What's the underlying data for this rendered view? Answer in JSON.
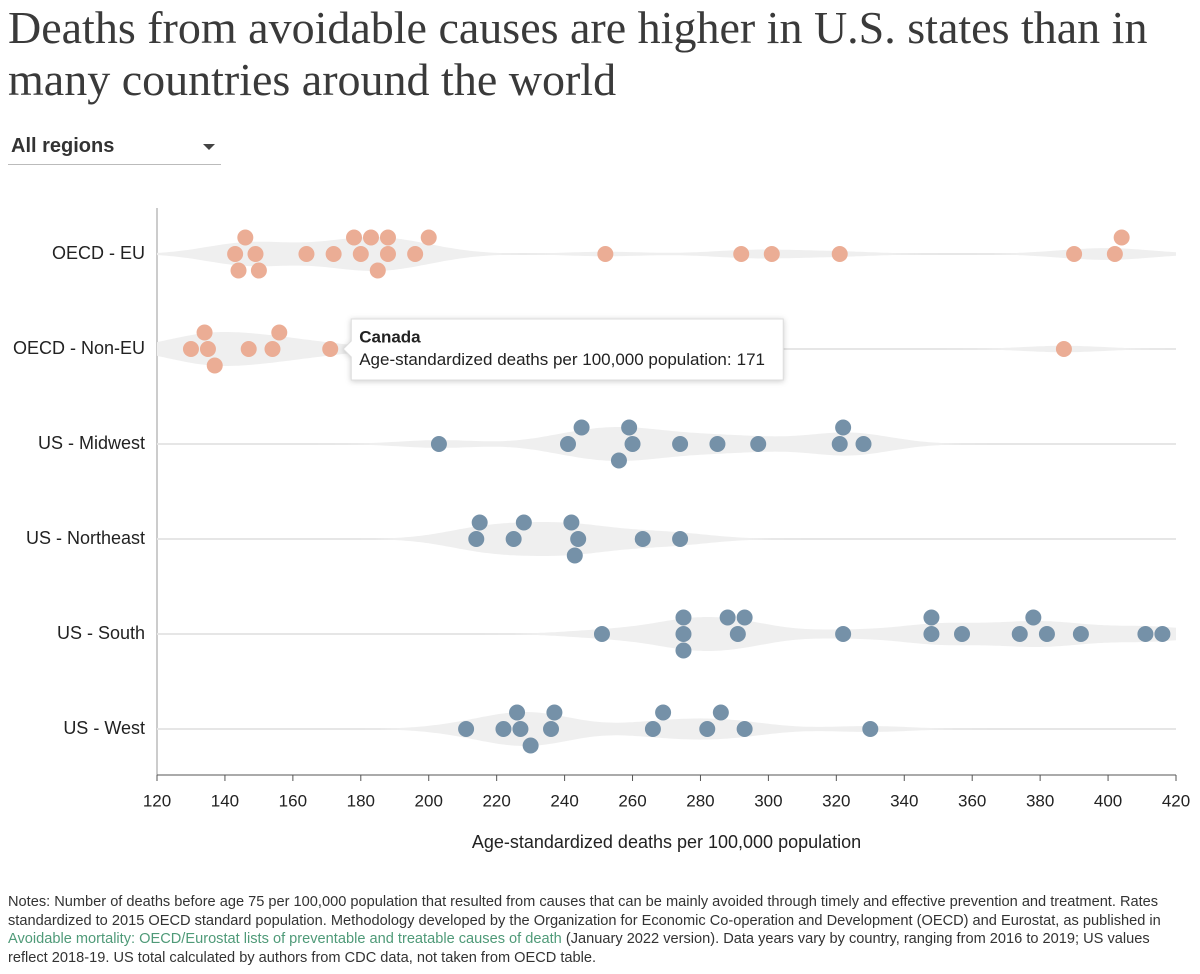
{
  "chart_data": {
    "type": "strip",
    "title": "Deaths from avoidable causes are higher in U.S. states than in many countries around the world",
    "dropdown": "All regions",
    "x_label": "Age-standardized deaths per 100,000 population",
    "xlim": [
      120,
      420
    ],
    "xticks": [
      120,
      140,
      160,
      180,
      200,
      220,
      240,
      260,
      280,
      300,
      320,
      340,
      360,
      380,
      400,
      420
    ],
    "series": [
      {
        "name": "OECD - EU",
        "color": "#eaa98f",
        "values": [
          143,
          149,
          146,
          144,
          150,
          164,
          172,
          180,
          178,
          183,
          188,
          188,
          185,
          196,
          200,
          252,
          292,
          301,
          321,
          390,
          402,
          404
        ]
      },
      {
        "name": "OECD - Non-EU",
        "color": "#eaa98f",
        "values": [
          130,
          134,
          135,
          137,
          147,
          154,
          156,
          171,
          387
        ]
      },
      {
        "name": "US - Midwest",
        "color": "#6e8ba3",
        "values": [
          203,
          241,
          245,
          260,
          259,
          256,
          274,
          285,
          297,
          321,
          322,
          328
        ]
      },
      {
        "name": "US - Northeast",
        "color": "#6e8ba3",
        "values": [
          214,
          215,
          225,
          228,
          244,
          242,
          243,
          263,
          274
        ]
      },
      {
        "name": "US - South",
        "color": "#6e8ba3",
        "values": [
          251,
          275,
          275,
          275,
          291,
          288,
          293,
          322,
          348,
          348,
          357,
          374,
          378,
          382,
          392,
          411,
          416
        ]
      },
      {
        "name": "US - West",
        "color": "#6e8ba3",
        "values": [
          211,
          222,
          227,
          226,
          230,
          236,
          237,
          266,
          269,
          282,
          286,
          293,
          330
        ]
      }
    ],
    "tooltip": {
      "name": "Canada",
      "label": "Age-standardized deaths per 100,000 population:",
      "value": 171,
      "series": 1
    },
    "notes": {
      "prefix": "Notes: Number of deaths before age 75 per 100,000 population that resulted from causes that can be mainly avoided through timely and effective prevention and treatment. Rates standardized to 2015 OECD standard population. Methodology developed by the Organization for Economic Co-operation and Development (OECD) and Eurostat, as published in",
      "link": "Avoidable mortality: OECD/Eurostat lists of preventable and treatable causes of death",
      "suffix": "(January 2022 version). Data years vary by country, ranging from 2016 to 2019; US values reflect 2018-19. US total calculated by authors from CDC data, not taken from OECD table."
    }
  }
}
